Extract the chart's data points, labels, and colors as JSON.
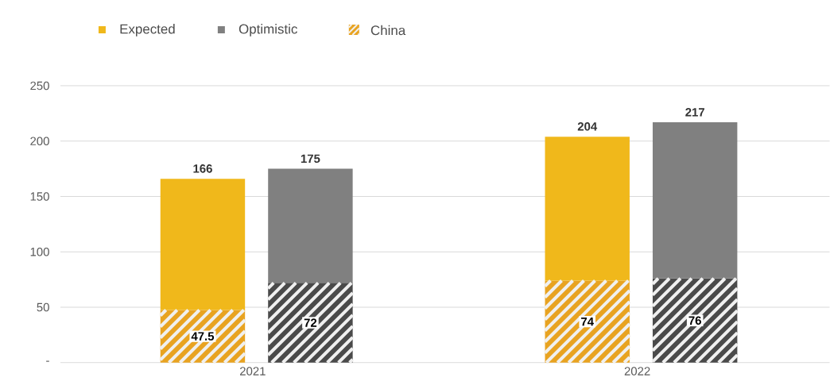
{
  "chart_data": {
    "type": "bar",
    "stacked": true,
    "x": [
      2020.87,
      2021.15,
      2021.87,
      2022.15
    ],
    "series": [
      {
        "name": "China",
        "color": "#e8a321",
        "values": [
          47.5,
          null,
          74,
          null
        ],
        "value_labels": [
          "47.5",
          null,
          "74",
          null
        ]
      },
      {
        "name": "Expected",
        "color": "#f0b81b",
        "values": [
          118.5,
          null,
          130,
          null
        ]
      },
      {
        "type": "bar",
        "color": "#4a4a4a",
        "values": [
          null,
          72,
          null,
          76
        ],
        "value_labels": [
          null,
          "72",
          null,
          "76"
        ]
      },
      {
        "name": "Optimistic",
        "color": "#808080",
        "values": [
          null,
          103,
          null,
          141
        ]
      }
    ],
    "totals": [
      "166",
      "175",
      "204",
      "217"
    ],
    "xlim": [
      2020.5,
      2022.5
    ],
    "xticks": [
      2021,
      2022
    ],
    "ylim": [
      0,
      250
    ],
    "yticks": [
      {
        "value": 0,
        "label": "-"
      },
      50,
      100,
      150,
      200,
      250
    ],
    "grid": "y",
    "legend": "top left"
  }
}
